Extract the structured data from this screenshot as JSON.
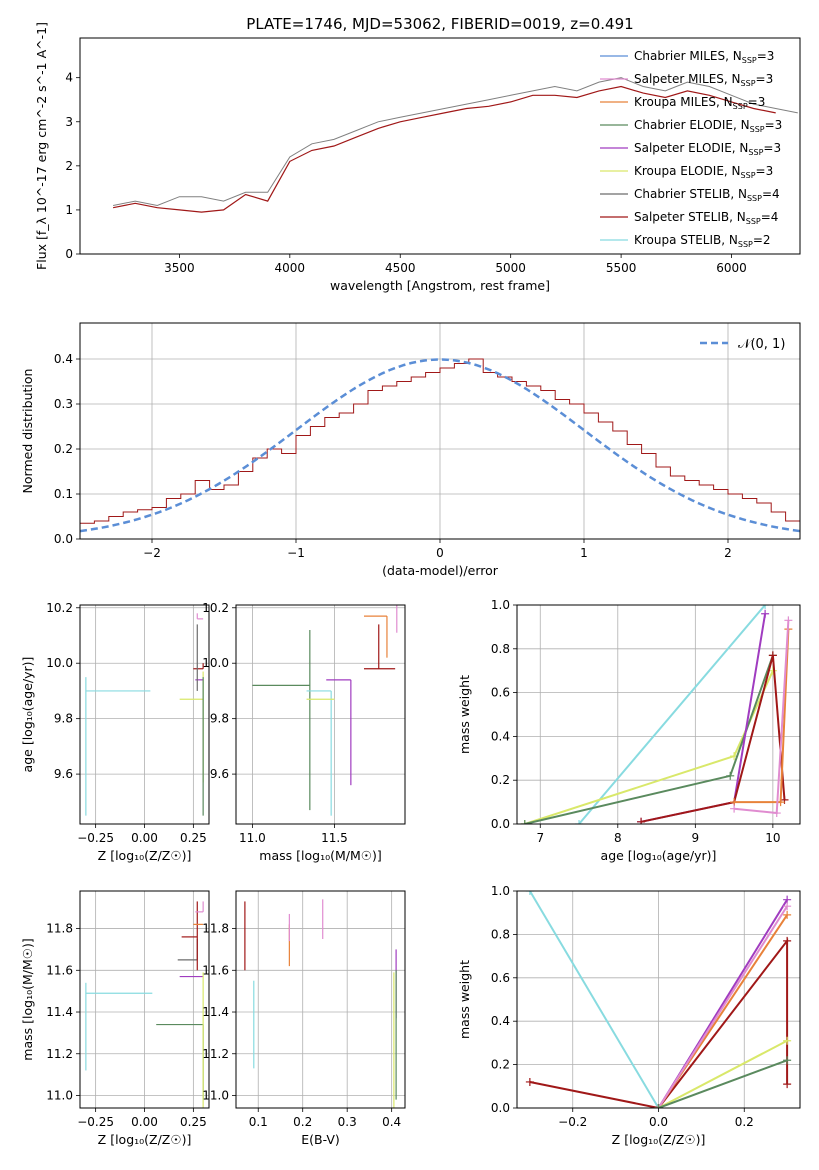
{
  "title": "PLATE=1746, MJD=53062, FIBERID=0019, z=0.491",
  "colors": {
    "chabrier_miles": "#5b8ed6",
    "salpeter_miles": "#e08cd0",
    "kroupa_miles": "#e8823a",
    "chabrier_elodie": "#5a8a5e",
    "salpeter_elodie": "#a03cc0",
    "kroupa_elodie": "#d9e86a",
    "chabrier_stelib": "#6c6c6c",
    "salpeter_stelib": "#a01818",
    "kroupa_stelib": "#88dbe0",
    "gauss": "#5b8ed6",
    "grid": "#b0b0b0"
  },
  "chart_data": [
    {
      "type": "line",
      "xlabel": "wavelength [Angstrom, rest frame]",
      "ylabel": "Flux [f_λ 10^-17 erg cm^-2 s^-1 A^-1]",
      "xlim": [
        3050,
        6310
      ],
      "ylim": [
        0,
        4.9
      ],
      "xticks": [
        "3500",
        "4000",
        "4500",
        "5000",
        "5500",
        "6000"
      ],
      "yticks": [
        "0",
        "1",
        "2",
        "3",
        "4"
      ],
      "grid": false,
      "legend_position": "top-right",
      "legend": [
        {
          "text": "Chabrier MILES, N",
          "sub": "SSP",
          "tail": "=3"
        },
        {
          "text": "Salpeter MILES, N",
          "sub": "SSP",
          "tail": "=3"
        },
        {
          "text": "Kroupa MILES, N",
          "sub": "SSP",
          "tail": "=3"
        },
        {
          "text": "Chabrier ELODIE, N",
          "sub": "SSP",
          "tail": "=3"
        },
        {
          "text": "Salpeter ELODIE, N",
          "sub": "SSP",
          "tail": "=3"
        },
        {
          "text": "Kroupa ELODIE, N",
          "sub": "SSP",
          "tail": "=3"
        },
        {
          "text": "Chabrier STELIB, N",
          "sub": "SSP",
          "tail": "=4"
        },
        {
          "text": "Salpeter STELIB, N",
          "sub": "SSP",
          "tail": "=4"
        },
        {
          "text": "Kroupa STELIB, N",
          "sub": "SSP",
          "tail": "=2"
        }
      ],
      "series": [
        {
          "kind": "data",
          "x": [
            3200,
            3300,
            3400,
            3500,
            3600,
            3700,
            3800,
            3900,
            4000,
            4100,
            4200,
            4300,
            4400,
            4500,
            4600,
            4700,
            4800,
            4900,
            5000,
            5100,
            5200,
            5300,
            5400,
            5500,
            5600,
            5700,
            5800,
            5900,
            6000,
            6100,
            6200,
            6300
          ],
          "y": [
            1.1,
            1.2,
            1.1,
            1.3,
            1.3,
            1.2,
            1.4,
            1.4,
            2.2,
            2.5,
            2.6,
            2.8,
            3.0,
            3.1,
            3.2,
            3.3,
            3.4,
            3.5,
            3.6,
            3.7,
            3.8,
            3.7,
            3.9,
            4.0,
            3.8,
            3.7,
            3.9,
            3.8,
            3.6,
            3.4,
            3.3,
            3.2
          ]
        },
        {
          "kind": "model",
          "x": [
            3200,
            3300,
            3400,
            3500,
            3600,
            3700,
            3800,
            3900,
            4000,
            4100,
            4200,
            4300,
            4400,
            4500,
            4600,
            4700,
            4800,
            4900,
            5000,
            5100,
            5200,
            5300,
            5400,
            5500,
            5600,
            5700,
            5800,
            5900,
            6000,
            6100,
            6200
          ],
          "y": [
            1.05,
            1.15,
            1.05,
            1.0,
            0.95,
            1.0,
            1.35,
            1.2,
            2.1,
            2.35,
            2.45,
            2.65,
            2.85,
            3.0,
            3.1,
            3.2,
            3.3,
            3.35,
            3.45,
            3.6,
            3.6,
            3.55,
            3.7,
            3.8,
            3.65,
            3.55,
            3.7,
            3.6,
            3.45,
            3.3,
            3.2
          ]
        }
      ]
    },
    {
      "type": "line",
      "xlabel": "(data-model)/error",
      "ylabel": "Normed distribution",
      "xlim": [
        -2.5,
        2.5
      ],
      "ylim": [
        0,
        0.48
      ],
      "xticks": [
        "−2",
        "−1",
        "0",
        "1",
        "2"
      ],
      "yticks": [
        "0.0",
        "0.1",
        "0.2",
        "0.3",
        "0.4"
      ],
      "grid": true,
      "legend": [
        {
          "text": "𝒩(0, 1)"
        }
      ],
      "hist_bins": [
        -2.5,
        -2.4,
        -2.3,
        -2.2,
        -2.1,
        -2.0,
        -1.9,
        -1.8,
        -1.7,
        -1.6,
        -1.5,
        -1.4,
        -1.3,
        -1.2,
        -1.1,
        -1.0,
        -0.9,
        -0.8,
        -0.7,
        -0.6,
        -0.5,
        -0.4,
        -0.3,
        -0.2,
        -0.1,
        0.0,
        0.1,
        0.2,
        0.3,
        0.4,
        0.5,
        0.6,
        0.7,
        0.8,
        0.9,
        1.0,
        1.1,
        1.2,
        1.3,
        1.4,
        1.5,
        1.6,
        1.7,
        1.8,
        1.9,
        2.0,
        2.1,
        2.2,
        2.3,
        2.4
      ],
      "hist_values": [
        0.035,
        0.04,
        0.05,
        0.06,
        0.065,
        0.07,
        0.09,
        0.1,
        0.13,
        0.11,
        0.12,
        0.15,
        0.18,
        0.2,
        0.19,
        0.23,
        0.25,
        0.27,
        0.28,
        0.3,
        0.33,
        0.34,
        0.35,
        0.36,
        0.37,
        0.38,
        0.39,
        0.4,
        0.37,
        0.36,
        0.35,
        0.34,
        0.33,
        0.31,
        0.3,
        0.28,
        0.26,
        0.24,
        0.21,
        0.19,
        0.16,
        0.14,
        0.13,
        0.12,
        0.11,
        0.1,
        0.09,
        0.08,
        0.06,
        0.04
      ]
    },
    {
      "type": "scatter",
      "xlabel": "Z [log₁₀(Z/Z☉)]",
      "ylabel": "age  [log₁₀(age/yr)]",
      "xlim": [
        -0.33,
        0.33
      ],
      "ylim": [
        9.42,
        10.21
      ],
      "xticks": [
        "−0.25",
        "0.00",
        "0.25"
      ],
      "yticks": [
        "9.6",
        "9.8",
        "10.0",
        "10.2"
      ],
      "grid": true,
      "points": [
        {
          "series": "kroupa_stelib",
          "x": -0.3,
          "y": 9.9,
          "xerr": [
            0.0,
            0.33
          ],
          "yerr": [
            0.45,
            0.05
          ]
        },
        {
          "series": "kroupa_elodie",
          "x": 0.3,
          "y": 9.87,
          "xerr": [
            0.12,
            0.0
          ],
          "yerr": [
            0.3,
            0.1
          ]
        },
        {
          "series": "salpeter_elodie",
          "x": 0.3,
          "y": 9.94,
          "xerr": [
            0.04,
            0.0
          ],
          "yerr": [
            0.0,
            0.0
          ]
        },
        {
          "series": "salpeter_stelib",
          "x": 0.3,
          "y": 9.98,
          "xerr": [
            0.05,
            0.0
          ],
          "yerr": [
            0.0,
            0.02
          ]
        },
        {
          "series": "chabrier_stelib",
          "x": 0.27,
          "y": 10.0,
          "xerr": [
            0.0,
            0.0
          ],
          "yerr": [
            0.1,
            0.14
          ]
        },
        {
          "series": "salpeter_miles",
          "x": 0.27,
          "y": 10.16,
          "xerr": [
            0.0,
            0.03
          ],
          "yerr": [
            0.0,
            0.02
          ]
        },
        {
          "series": "chabrier_elodie",
          "x": 0.3,
          "y": 9.85,
          "xerr": [
            0.0,
            0.0
          ],
          "yerr": [
            0.4,
            0.1
          ]
        }
      ]
    },
    {
      "type": "scatter",
      "xlabel": "mass [log₁₀(M/M☉)]",
      "ylabel": "",
      "xlim": [
        10.9,
        11.93
      ],
      "ylim": [
        9.42,
        10.21
      ],
      "xticks": [
        "11.0",
        "11.5"
      ],
      "yticks": [
        "9.6",
        "9.8",
        "10.0",
        "10.2"
      ],
      "grid": true,
      "points": [
        {
          "series": "chabrier_elodie",
          "x": 11.35,
          "y": 9.92,
          "xerr": [
            0.35,
            0.0
          ],
          "yerr": [
            0.45,
            0.2
          ]
        },
        {
          "series": "kroupa_stelib",
          "x": 11.48,
          "y": 9.9,
          "xerr": [
            0.15,
            0.0
          ],
          "yerr": [
            0.45,
            0.0
          ]
        },
        {
          "series": "kroupa_elodie",
          "x": 11.5,
          "y": 9.87,
          "xerr": [
            0.17,
            0.0
          ],
          "yerr": [
            0.0,
            0.0
          ]
        },
        {
          "series": "salpeter_elodie",
          "x": 11.6,
          "y": 9.94,
          "xerr": [
            0.15,
            0.0
          ],
          "yerr": [
            0.38,
            0.0
          ]
        },
        {
          "series": "salpeter_stelib",
          "x": 11.77,
          "y": 9.98,
          "xerr": [
            0.09,
            0.1
          ],
          "yerr": [
            0.0,
            0.16
          ]
        },
        {
          "series": "kroupa_miles",
          "x": 11.82,
          "y": 10.17,
          "xerr": [
            0.14,
            0.0
          ],
          "yerr": [
            0.15,
            0.0
          ]
        },
        {
          "series": "salpeter_miles",
          "x": 11.88,
          "y": 10.17,
          "xerr": [
            0.0,
            0.0
          ],
          "yerr": [
            0.06,
            0.04
          ]
        }
      ]
    },
    {
      "type": "line",
      "xlabel": "age  [log₁₀(age/yr)]",
      "ylabel": "mass weight",
      "xlim": [
        6.7,
        10.35
      ],
      "ylim": [
        0,
        1.0
      ],
      "xticks": [
        "7",
        "8",
        "9",
        "10"
      ],
      "yticks": [
        "0.0",
        "0.2",
        "0.4",
        "0.6",
        "0.8",
        "1.0"
      ],
      "grid": true,
      "series": [
        {
          "name": "Kroupa STELIB",
          "x": [
            7.5,
            9.9
          ],
          "y": [
            0.0,
            1.0
          ]
        },
        {
          "name": "Kroupa ELODIE",
          "x": [
            6.8,
            9.5,
            10.0
          ],
          "y": [
            0.0,
            0.31,
            0.7
          ]
        },
        {
          "name": "Chabrier ELODIE",
          "x": [
            6.8,
            9.45,
            10.0
          ],
          "y": [
            0.0,
            0.22,
            0.77
          ]
        },
        {
          "name": "Salpeter ELODIE",
          "x": [
            8.3,
            9.5,
            9.9
          ],
          "y": [
            0.01,
            0.1,
            0.96
          ]
        },
        {
          "name": "Salpeter STELIB",
          "x": [
            8.3,
            9.5,
            10.0,
            10.15
          ],
          "y": [
            0.01,
            0.1,
            0.77,
            0.11
          ]
        },
        {
          "name": "Kroupa MILES",
          "x": [
            9.5,
            10.1,
            10.2
          ],
          "y": [
            0.1,
            0.1,
            0.89
          ]
        },
        {
          "name": "Salpeter MILES",
          "x": [
            9.5,
            10.05,
            10.2
          ],
          "y": [
            0.07,
            0.05,
            0.93
          ]
        }
      ]
    },
    {
      "type": "scatter",
      "xlabel": "Z [log₁₀(Z/Z☉)]",
      "ylabel": "mass [log₁₀(M/M☉)]",
      "xlim": [
        -0.33,
        0.33
      ],
      "ylim": [
        10.94,
        11.98
      ],
      "xticks": [
        "−0.25",
        "0.00",
        "0.25"
      ],
      "yticks": [
        "11.0",
        "11.2",
        "11.4",
        "11.6",
        "11.8"
      ],
      "grid": true,
      "points": [
        {
          "series": "kroupa_stelib",
          "x": -0.3,
          "y": 11.49,
          "xerr": [
            0.0,
            0.34
          ],
          "yerr": [
            0.37,
            0.05
          ]
        },
        {
          "series": "chabrier_elodie",
          "x": 0.3,
          "y": 11.34,
          "xerr": [
            0.24,
            0.0
          ],
          "yerr": [
            0.36,
            0.0
          ]
        },
        {
          "series": "salpeter_elodie",
          "x": 0.3,
          "y": 11.57,
          "xerr": [
            0.12,
            0.0
          ],
          "yerr": [
            0.0,
            0.0
          ]
        },
        {
          "series": "chabrier_stelib",
          "x": 0.27,
          "y": 11.65,
          "xerr": [
            0.1,
            0.0
          ],
          "yerr": [
            0.0,
            0.1
          ]
        },
        {
          "series": "salpeter_stelib",
          "x": 0.27,
          "y": 11.76,
          "xerr": [
            0.08,
            0.0
          ],
          "yerr": [
            0.16,
            0.17
          ]
        },
        {
          "series": "kroupa_miles",
          "x": 0.3,
          "y": 11.82,
          "xerr": [
            0.05,
            0.0
          ],
          "yerr": [
            0.0,
            0.0
          ]
        },
        {
          "series": "salpeter_miles",
          "x": 0.3,
          "y": 11.88,
          "xerr": [
            0.04,
            0.0
          ],
          "yerr": [
            0.0,
            0.05
          ]
        },
        {
          "series": "kroupa_elodie",
          "x": 0.3,
          "y": 11.34,
          "xerr": [
            0.0,
            0.0
          ],
          "yerr": [
            0.4,
            0.25
          ]
        }
      ]
    },
    {
      "type": "scatter",
      "xlabel": "E(B-V)",
      "ylabel": "",
      "xlim": [
        0.05,
        0.43
      ],
      "ylim": [
        10.94,
        11.98
      ],
      "xticks": [
        "0.1",
        "0.2",
        "0.3",
        "0.4"
      ],
      "yticks": [
        "11.0",
        "11.2",
        "11.4",
        "11.6",
        "11.8"
      ],
      "grid": true,
      "points": [
        {
          "series": "salpeter_stelib",
          "x": 0.07,
          "y": 11.76,
          "xerr": [
            0.0,
            0.0
          ],
          "yerr": [
            0.16,
            0.17
          ]
        },
        {
          "series": "kroupa_stelib",
          "x": 0.09,
          "y": 11.34,
          "xerr": [
            0.0,
            0.0
          ],
          "yerr": [
            0.21,
            0.21
          ]
        },
        {
          "series": "kroupa_miles",
          "x": 0.17,
          "y": 11.72,
          "xerr": [
            0.0,
            0.0
          ],
          "yerr": [
            0.1,
            0.1
          ]
        },
        {
          "series": "salpeter_miles",
          "x": 0.17,
          "y": 11.79,
          "xerr": [
            0.0,
            0.0
          ],
          "yerr": [
            0.05,
            0.08
          ]
        },
        {
          "series": "salpeter_miles",
          "x": 0.245,
          "y": 11.84,
          "xerr": [
            0.0,
            0.0
          ],
          "yerr": [
            0.09,
            0.1
          ]
        },
        {
          "series": "salpeter_elodie",
          "x": 0.41,
          "y": 11.57,
          "xerr": [
            0.0,
            0.0
          ],
          "yerr": [
            0.2,
            0.13
          ]
        },
        {
          "series": "chabrier_elodie",
          "x": 0.41,
          "y": 11.34,
          "xerr": [
            0.0,
            0.0
          ],
          "yerr": [
            0.36,
            0.26
          ]
        },
        {
          "series": "kroupa_elodie",
          "x": 0.405,
          "y": 11.34,
          "xerr": [
            0.0,
            0.0
          ],
          "yerr": [
            0.4,
            0.25
          ]
        }
      ]
    },
    {
      "type": "line",
      "xlabel": "Z [log₁₀(Z/Z☉)]",
      "ylabel": "mass weight",
      "xlim": [
        -0.33,
        0.33
      ],
      "ylim": [
        0,
        1.0
      ],
      "xticks": [
        "−0.2",
        "0.0",
        "0.2"
      ],
      "yticks": [
        "0.0",
        "0.2",
        "0.4",
        "0.6",
        "0.8",
        "1.0"
      ],
      "grid": true,
      "series": [
        {
          "name": "Kroupa STELIB",
          "x": [
            -0.3,
            0.0
          ],
          "y": [
            1.0,
            0.0
          ]
        },
        {
          "name": "Salpeter STELIB",
          "x": [
            -0.3,
            0.0,
            0.3,
            0.3
          ],
          "y": [
            0.12,
            0.0,
            0.77,
            0.11
          ]
        },
        {
          "name": "Salpeter ELODIE",
          "x": [
            0.0,
            0.3
          ],
          "y": [
            0.0,
            0.96
          ]
        },
        {
          "name": "Kroupa MILES",
          "x": [
            0.0,
            0.3
          ],
          "y": [
            0.0,
            0.89
          ]
        },
        {
          "name": "Salpeter MILES",
          "x": [
            0.0,
            0.3
          ],
          "y": [
            0.0,
            0.93
          ]
        },
        {
          "name": "Kroupa ELODIE",
          "x": [
            0.0,
            0.3
          ],
          "y": [
            0.0,
            0.31
          ]
        },
        {
          "name": "Chabrier ELODIE",
          "x": [
            0.0,
            0.3
          ],
          "y": [
            0.0,
            0.22
          ]
        }
      ]
    }
  ]
}
